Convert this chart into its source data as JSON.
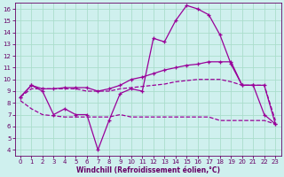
{
  "background_color": "#cff0ee",
  "grid_color": "#aaddcc",
  "line_color": "#990099",
  "xlabel": "Windchill (Refroidissement éolien,°C)",
  "xlabel_color": "#660066",
  "tick_color": "#660066",
  "xlim": [
    -0.5,
    23.5
  ],
  "ylim": [
    3.5,
    16.5
  ],
  "xticks": [
    0,
    1,
    2,
    3,
    4,
    5,
    6,
    7,
    8,
    9,
    10,
    11,
    12,
    13,
    14,
    15,
    16,
    17,
    18,
    19,
    20,
    21,
    22,
    23
  ],
  "yticks": [
    4,
    5,
    6,
    7,
    8,
    9,
    10,
    11,
    12,
    13,
    14,
    15,
    16
  ],
  "line1_x": [
    0,
    1,
    2,
    3,
    4,
    5,
    6,
    7,
    8,
    9,
    10,
    11,
    12,
    13,
    14,
    15,
    16,
    17,
    18,
    19,
    20,
    21,
    22,
    23
  ],
  "line1_y": [
    8.5,
    9.5,
    9.0,
    7.0,
    7.5,
    7.0,
    7.0,
    4.0,
    6.5,
    8.8,
    9.2,
    9.0,
    13.5,
    13.2,
    15.0,
    16.3,
    16.0,
    15.5,
    13.8,
    11.3,
    9.5,
    9.5,
    7.0,
    6.2
  ],
  "line2_x": [
    0,
    1,
    2,
    3,
    4,
    5,
    6,
    7,
    8,
    9,
    10,
    11,
    12,
    13,
    14,
    15,
    16,
    17,
    18,
    19,
    20,
    21,
    22,
    23
  ],
  "line2_y": [
    8.5,
    9.5,
    9.2,
    9.2,
    9.3,
    9.3,
    9.3,
    9.0,
    9.2,
    9.5,
    10.0,
    10.2,
    10.5,
    10.8,
    11.0,
    11.2,
    11.3,
    11.5,
    11.5,
    11.5,
    9.5,
    9.5,
    9.5,
    6.2
  ],
  "line3_x": [
    0,
    1,
    2,
    3,
    4,
    5,
    6,
    7,
    8,
    9,
    10,
    11,
    12,
    13,
    14,
    15,
    16,
    17,
    18,
    19,
    20,
    21,
    22,
    23
  ],
  "line3_y": [
    8.5,
    9.2,
    9.2,
    9.2,
    9.2,
    9.2,
    9.0,
    9.0,
    9.0,
    9.2,
    9.3,
    9.4,
    9.5,
    9.6,
    9.8,
    9.9,
    10.0,
    10.0,
    10.0,
    9.8,
    9.5,
    9.5,
    9.5,
    6.5
  ],
  "line4_x": [
    0,
    1,
    2,
    3,
    4,
    5,
    6,
    7,
    8,
    9,
    10,
    11,
    12,
    13,
    14,
    15,
    16,
    17,
    18,
    19,
    20,
    21,
    22,
    23
  ],
  "line4_y": [
    8.2,
    7.5,
    7.0,
    6.9,
    6.8,
    6.8,
    6.8,
    6.8,
    6.8,
    7.0,
    6.8,
    6.8,
    6.8,
    6.8,
    6.8,
    6.8,
    6.8,
    6.8,
    6.5,
    6.5,
    6.5,
    6.5,
    6.5,
    6.2
  ]
}
